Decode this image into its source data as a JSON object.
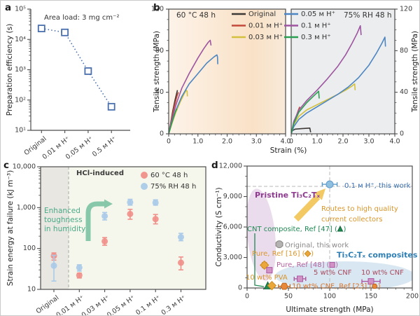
{
  "panel_labels": {
    "a": "a",
    "b": "b",
    "c": "c",
    "d": "d"
  },
  "chart_data": [
    {
      "id": "a",
      "type": "scatter",
      "yscale": "log",
      "annotation": "Area load: 3 mg cm⁻²",
      "ylabel": "Preparation efficiency (s)",
      "ylim": [
        10,
        100000
      ],
      "ytick_labels": [
        "10¹",
        "10²",
        "10³",
        "10⁴",
        "10⁵"
      ],
      "categories": [
        "Original",
        "0.01 ᴍ H⁺",
        "0.05 ᴍ H⁺",
        "0.5 ᴍ H⁺"
      ],
      "values": [
        23000,
        17000,
        900,
        60
      ],
      "marker": "open-square",
      "color": "#4a6fad",
      "linestyle": "dotted"
    },
    {
      "id": "b",
      "type": "line",
      "xlabel": "Strain (%)",
      "ylabel": "Tensile strength (MPa)",
      "xlim": [
        0,
        4
      ],
      "ylim": [
        0,
        120
      ],
      "xtick_labels": [
        "0",
        "1.0",
        "2.0",
        "3.0",
        "4.0"
      ],
      "ytick_labels": [
        "0",
        "40",
        "80",
        "120"
      ],
      "legend": [
        {
          "label": "Original",
          "color": "#3d3937"
        },
        {
          "label": "0.01 ᴍ H⁺",
          "color": "#c4493a"
        },
        {
          "label": "0.03 ᴍ H⁺",
          "color": "#d3c13e"
        },
        {
          "label": "0.05 ᴍ H⁺",
          "color": "#4d86c2"
        },
        {
          "label": "0.1 ᴍ H⁺",
          "color": "#9d55a0"
        },
        {
          "label": "0.3 ᴍ H⁺",
          "color": "#2c9e52"
        }
      ],
      "subplots": [
        {
          "title": "60 °C 48 h",
          "series": [
            {
              "label": "Original",
              "color": "#3d3937",
              "points": [
                [
                  0,
                  0
                ],
                [
                  0.06,
                  9
                ],
                [
                  0.14,
                  22
                ],
                [
                  0.22,
                  33
                ],
                [
                  0.3,
                  42
                ]
              ]
            },
            {
              "label": "0.01 ᴍ H⁺",
              "color": "#c4493a",
              "points": [
                [
                  0,
                  0
                ],
                [
                  0.08,
                  11
                ],
                [
                  0.18,
                  25
                ],
                [
                  0.28,
                  36
                ],
                [
                  0.33,
                  40
                ]
              ]
            },
            {
              "label": "0.03 ᴍ H⁺",
              "color": "#d3c13e",
              "points": [
                [
                  0,
                  0
                ],
                [
                  0.1,
                  9
                ],
                [
                  0.25,
                  21
                ],
                [
                  0.4,
                  31
                ],
                [
                  0.52,
                  38
                ],
                [
                  0.6,
                  42
                ],
                [
                  0.63,
                  41
                ],
                [
                  0.64,
                  36
                ]
              ]
            },
            {
              "label": "0.05 ᴍ H⁺",
              "color": "#4d86c2",
              "points": [
                [
                  0,
                  0
                ],
                [
                  0.1,
                  10
                ],
                [
                  0.25,
                  23
                ],
                [
                  0.45,
                  36
                ],
                [
                  0.7,
                  48
                ],
                [
                  1.0,
                  58
                ],
                [
                  1.3,
                  68
                ],
                [
                  1.55,
                  74
                ],
                [
                  1.65,
                  76
                ],
                [
                  1.67,
                  74
                ],
                [
                  1.68,
                  67
                ]
              ]
            },
            {
              "label": "0.1 ᴍ H⁺",
              "color": "#9d55a0",
              "points": [
                [
                  0,
                  0
                ],
                [
                  0.1,
                  13
                ],
                [
                  0.25,
                  28
                ],
                [
                  0.45,
                  44
                ],
                [
                  0.7,
                  58
                ],
                [
                  1.0,
                  73
                ],
                [
                  1.2,
                  82
                ],
                [
                  1.35,
                  88
                ],
                [
                  1.42,
                  90
                ],
                [
                  1.45,
                  85
                ]
              ]
            },
            {
              "label": "0.3 ᴍ H⁺",
              "color": "#2c9e52",
              "points": [
                [
                  0,
                  0
                ],
                [
                  0.08,
                  8
                ],
                [
                  0.16,
                  16
                ],
                [
                  0.24,
                  22
                ],
                [
                  0.28,
                  24
                ]
              ]
            }
          ]
        },
        {
          "title": "75% RH 48 h",
          "series": [
            {
              "label": "Original",
              "color": "#3d3937",
              "points": [
                [
                  0,
                  0
                ],
                [
                  0.04,
                  3
                ],
                [
                  0.15,
                  4.5
                ],
                [
                  0.4,
                  5
                ],
                [
                  0.72,
                  5.5
                ],
                [
                  0.75,
                  1.5
                ]
              ]
            },
            {
              "label": "0.01 ᴍ H⁺",
              "color": "#c4493a",
              "points": [
                [
                  0,
                  0
                ],
                [
                  0.08,
                  8
                ],
                [
                  0.18,
                  16
                ],
                [
                  0.28,
                  23
                ],
                [
                  0.33,
                  26
                ]
              ]
            },
            {
              "label": "0.03 ᴍ H⁺",
              "color": "#d3c13e",
              "points": [
                [
                  0,
                  0
                ],
                [
                  0.1,
                  9
                ],
                [
                  0.3,
                  17
                ],
                [
                  0.6,
                  23
                ],
                [
                  1.0,
                  28
                ],
                [
                  1.4,
                  33
                ],
                [
                  1.8,
                  38
                ],
                [
                  2.1,
                  42
                ],
                [
                  2.35,
                  46
                ],
                [
                  2.45,
                  48
                ],
                [
                  2.47,
                  42
                ]
              ]
            },
            {
              "label": "0.05 ᴍ H⁺",
              "color": "#4d86c2",
              "points": [
                [
                  0,
                  0
                ],
                [
                  0.1,
                  7
                ],
                [
                  0.3,
                  14
                ],
                [
                  0.6,
                  20
                ],
                [
                  1.0,
                  26
                ],
                [
                  1.4,
                  32
                ],
                [
                  1.8,
                  38
                ],
                [
                  2.2,
                  45
                ],
                [
                  2.6,
                  54
                ],
                [
                  3.0,
                  66
                ],
                [
                  3.3,
                  78
                ],
                [
                  3.5,
                  87
                ],
                [
                  3.62,
                  93
                ],
                [
                  3.64,
                  84
                ]
              ]
            },
            {
              "label": "0.1 ᴍ H⁺",
              "color": "#9d55a0",
              "points": [
                [
                  0,
                  0
                ],
                [
                  0.1,
                  12
                ],
                [
                  0.3,
                  23
                ],
                [
                  0.6,
                  32
                ],
                [
                  1.0,
                  42
                ],
                [
                  1.4,
                  53
                ],
                [
                  1.8,
                  65
                ],
                [
                  2.1,
                  76
                ],
                [
                  2.35,
                  87
                ],
                [
                  2.55,
                  97
                ],
                [
                  2.67,
                  104
                ],
                [
                  2.7,
                  95
                ]
              ]
            },
            {
              "label": "0.3 ᴍ H⁺",
              "color": "#2c9e52",
              "points": [
                [
                  0,
                  0
                ],
                [
                  0.1,
                  10
                ],
                [
                  0.3,
                  21
                ],
                [
                  0.6,
                  30
                ],
                [
                  0.85,
                  36
                ],
                [
                  1.02,
                  40
                ],
                [
                  1.06,
                  41
                ],
                [
                  1.08,
                  34
                ]
              ]
            }
          ]
        }
      ]
    },
    {
      "id": "c",
      "type": "scatter-error",
      "yscale": "log",
      "ylabel": "Strain energy at failure (kJ m⁻³)",
      "ylim": [
        10,
        10000
      ],
      "ytick_labels": [
        "10",
        "100",
        "1,000",
        "10,000"
      ],
      "categories": [
        "Original",
        "0.01 ᴍ H⁺",
        "0.03 ᴍ H⁺",
        "0.05 ᴍ H⁺",
        "0.1 ᴍ H⁺",
        "0.3 ᴍ H⁺"
      ],
      "series": [
        {
          "name": "60 °C 48 h",
          "color": "#f0908a",
          "values": [
            66,
            22,
            150,
            700,
            525,
            45
          ],
          "err_lo": [
            52,
            19,
            120,
            520,
            400,
            30
          ],
          "err_hi": [
            78,
            25,
            185,
            910,
            680,
            62
          ]
        },
        {
          "name": "75% RH 48 h",
          "color": "#a9cae8",
          "values": [
            38,
            34,
            620,
            1350,
            1320,
            190
          ],
          "err_lo": [
            16,
            28,
            500,
            1150,
            1150,
            155
          ],
          "err_hi": [
            68,
            40,
            760,
            1600,
            1550,
            235
          ]
        }
      ],
      "annotations": {
        "divider_label": "HCl-induced",
        "highlight_lines": [
          "Enhanced",
          "toughness",
          "in humidity"
        ],
        "highlight_color": "#4aa988",
        "arrow_color": "#7cc2a3"
      }
    },
    {
      "id": "d",
      "type": "scatter",
      "xlabel": "Ultimate strength (MPa)",
      "ylabel": "Conductivity (S cm⁻¹)",
      "xlim": [
        0,
        200
      ],
      "ylim": [
        0,
        12000
      ],
      "xtick_labels": [
        "0",
        "50",
        "100",
        "150",
        "200"
      ],
      "ytick_labels": [
        "0",
        "3,000",
        "6,000",
        "9,000",
        "12,000"
      ],
      "ref_lines": {
        "horizontal": 10000,
        "vertical": 100
      },
      "points": [
        {
          "name": "this-work-01MH",
          "label": "0.1 ᴍ H⁺, this work",
          "x": 100,
          "y": 10200,
          "xerr": 9,
          "marker": "circle",
          "fill": "#8fc0e0",
          "stroke": "#5d99c9",
          "label_color": "#3a6fae"
        },
        {
          "name": "original-this-work",
          "label": "Original, this work",
          "x": 39,
          "y": 4300,
          "xerr": 4,
          "marker": "circle",
          "fill": "#b5b2b2",
          "stroke": "#8a8786",
          "label_color": "#8b8888"
        },
        {
          "name": "cnt-composite",
          "label": "CNT composite, Ref [47]",
          "symbol": "triangle",
          "x": 25,
          "y": 200,
          "marker": "triangle",
          "fill": "#1f8a52",
          "stroke": "#15683d",
          "label_color": "#1f8a52"
        },
        {
          "name": "pure-ref16",
          "label": "Pure, Ref [16]",
          "symbol": "diamond",
          "x": 21,
          "y": 2250,
          "xerr": 3,
          "yerr": 250,
          "marker": "diamond",
          "fill": "#eaa83c",
          "stroke": "#cd8a20",
          "label_color": "#d9982f"
        },
        {
          "name": "pva10",
          "label": "10 wt% PVA",
          "x": 30,
          "y": 230,
          "marker": "diamond",
          "fill": "#eaa83c",
          "stroke": "#cd8a20",
          "label_color": "#d9952a"
        },
        {
          "name": "pure-ref48",
          "label": "Pure, Ref [48]",
          "symbol": "square",
          "x": 27,
          "y": 1750,
          "marker": "square",
          "fill": "#d193c6",
          "stroke": "#ad58a0",
          "label_color": "#b4619f"
        },
        {
          "name": "cnf5",
          "label": "5 wt% CNF",
          "x": 64,
          "y": 900,
          "xerr": 7,
          "marker": "square",
          "fill": "#d193c6",
          "stroke": "#ad58a0",
          "label_color": "#a84a5e"
        },
        {
          "name": "cnf10",
          "label": "10 wt% CNF",
          "x": 150,
          "y": 650,
          "xerr": 11,
          "marker": "square",
          "fill": "#d193c6",
          "stroke": "#ad58a0",
          "label_color": "#a84a5e"
        },
        {
          "name": "cnf10-ref23",
          "label": "10 wt% CNF, Ref [23]",
          "symbol": "hexagon",
          "x": 45,
          "y": 160,
          "xerr": 7,
          "marker": "hexagon",
          "fill": "#e8883a",
          "stroke": "#c4661b",
          "label_color": "#d9752c"
        }
      ],
      "group_labels": [
        {
          "name": "pristine",
          "text": "Pristine Ti₃C₂Tₓ",
          "color": "#8d3a8f"
        },
        {
          "name": "composites",
          "text": "Ti₃C₂Tₓ composites",
          "color": "#2e7fb5"
        }
      ],
      "arrow_label_lines": [
        "Routes to high quality",
        "current collectors"
      ],
      "arrow_label_color": "#d9952a",
      "arrow_color": "#f3c963"
    }
  ]
}
